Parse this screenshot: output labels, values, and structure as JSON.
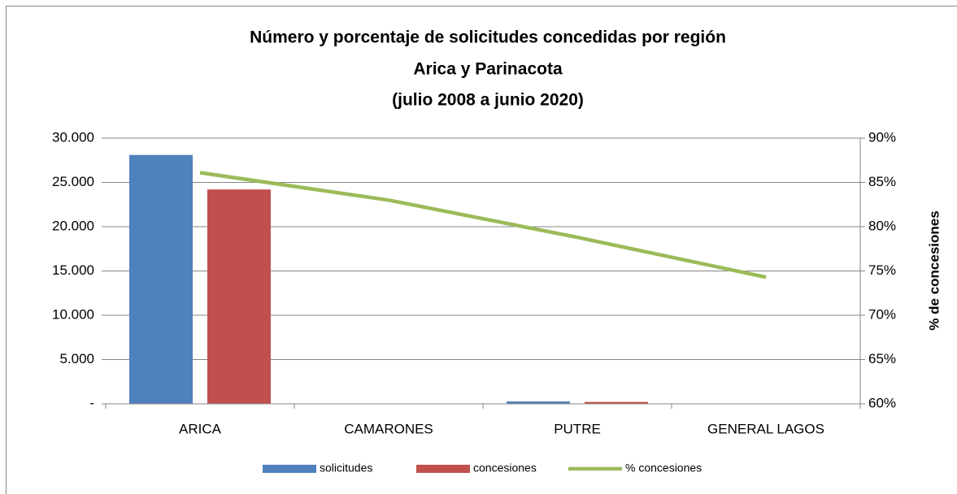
{
  "chart_data": {
    "type": "bar_line",
    "title": [
      "Número y porcentaje de solicitudes concedidas por región",
      "Arica y Parinacota",
      "(julio 2008 a junio 2020)"
    ],
    "y2_label": "% de concesiones",
    "categories": [
      "ARICA",
      "CAMARONES",
      "PUTRE",
      "GENERAL LAGOS"
    ],
    "series": [
      {
        "name": "solicitudes",
        "color": "#4f81bd",
        "kind": "bar",
        "values": [
          28100,
          30,
          270,
          20
        ]
      },
      {
        "name": "concesiones",
        "color": "#c0504d",
        "kind": "bar",
        "values": [
          24200,
          25,
          215,
          15
        ]
      },
      {
        "name": "% concesiones",
        "color": "#9bbb59",
        "kind": "line",
        "axis": "y2",
        "values": [
          86.1,
          83.0,
          78.8,
          74.3
        ]
      }
    ],
    "ylim": [
      0,
      30000
    ],
    "yticks": [
      {
        "value": 0,
        "label": "-"
      },
      {
        "value": 5000,
        "label": "5.000"
      },
      {
        "value": 10000,
        "label": "10.000"
      },
      {
        "value": 15000,
        "label": "15.000"
      },
      {
        "value": 20000,
        "label": "20.000"
      },
      {
        "value": 25000,
        "label": "25.000"
      },
      {
        "value": 30000,
        "label": "30.000"
      }
    ],
    "y2lim": [
      60,
      90
    ],
    "y2ticks": [
      {
        "value": 60,
        "label": "60%"
      },
      {
        "value": 65,
        "label": "65%"
      },
      {
        "value": 70,
        "label": "70%"
      },
      {
        "value": 75,
        "label": "75%"
      },
      {
        "value": 80,
        "label": "80%"
      },
      {
        "value": 85,
        "label": "85%"
      },
      {
        "value": 90,
        "label": "90%"
      }
    ],
    "grid": true,
    "legend": "bottom"
  }
}
